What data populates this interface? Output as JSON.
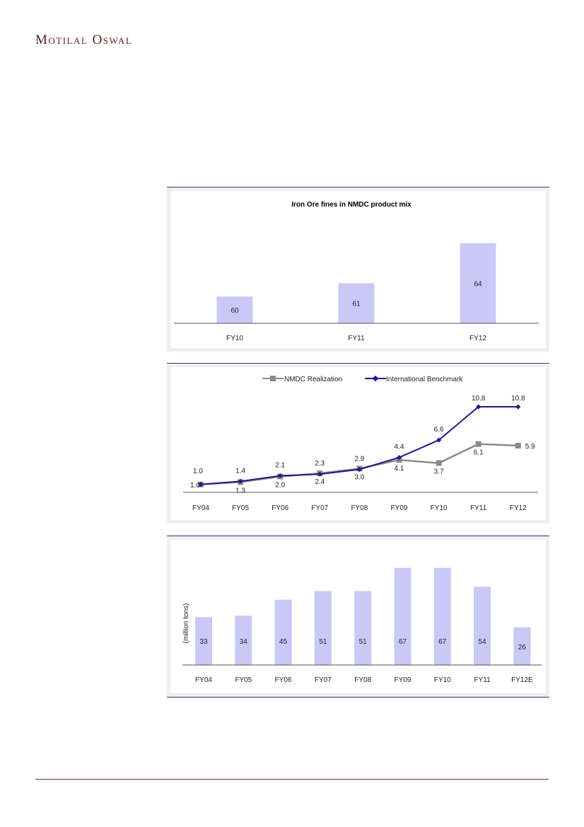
{
  "header": {
    "brand": "Motilal Oswal"
  },
  "colors": {
    "bar": "#c9c9f7",
    "nmdc_line": "#8a8a8a",
    "intl_line": "#1a1a8c",
    "panel_border": "#1f3a78",
    "footer_rule": "#7a2a2a"
  },
  "chart_data": [
    {
      "type": "bar",
      "title": "Iron Ore fines in NMDC product  mix",
      "categories": [
        "FY10",
        "FY11",
        "FY12"
      ],
      "values": [
        60,
        61,
        64
      ],
      "ylim": [
        58,
        66
      ],
      "xlabel": "",
      "ylabel": ""
    },
    {
      "type": "line",
      "title": "",
      "categories": [
        "FY04",
        "FY05",
        "FY06",
        "FY07",
        "FY08",
        "FY09",
        "FY10",
        "FY11",
        "FY12"
      ],
      "series": [
        {
          "name": "NMDC Realization",
          "values": [
            1.0,
            1.3,
            2.0,
            2.4,
            3.0,
            4.1,
            3.7,
            6.1,
            5.9
          ],
          "labels": [
            "1.0",
            "1.3",
            "2.0",
            "2.4",
            "3.0",
            "4.1",
            "3.7",
            "6.1",
            "5.9"
          ]
        },
        {
          "name": "International Benchmark",
          "values": [
            1.0,
            1.4,
            2.1,
            2.3,
            2.9,
            4.4,
            6.6,
            10.8,
            10.8
          ],
          "labels": [
            "1.0",
            "1.4",
            "2.1",
            "2.3",
            "2.9",
            "4.4",
            "6.6",
            "10.8",
            "10.8"
          ]
        }
      ],
      "legend": "top-center",
      "ylim": [
        0,
        12
      ]
    },
    {
      "type": "bar",
      "title": "",
      "categories": [
        "FY04",
        "FY05",
        "FY06",
        "FY07",
        "FY08",
        "FY09",
        "FY10",
        "FY11",
        "FY12E"
      ],
      "values": [
        33,
        34,
        45,
        51,
        51,
        67,
        67,
        54,
        26
      ],
      "ylabel": "(million tons)",
      "ylim": [
        0,
        70
      ]
    }
  ]
}
